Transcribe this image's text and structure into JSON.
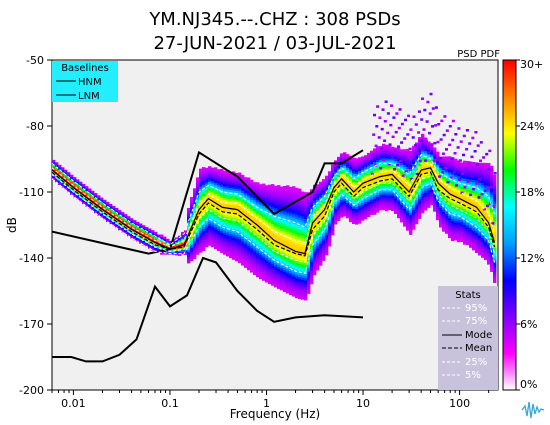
{
  "title_line1": "YM.NJ345.--.CHZ : 308 PSDs",
  "title_line2": "27-JUN-2021 / 03-JUL-2021",
  "pdf_label": "PSD PDF",
  "colors": {
    "plot_bg": "#f0f0f0",
    "hnm_lnm": "#000000",
    "baseline_box": "#22eeff",
    "stats_box": "#c9c2dc"
  },
  "logo": "wave-logo-icon",
  "chart_data": {
    "type": "heatmap",
    "title": "YM.NJ345.--.CHZ : 308 PSDs",
    "subtitle": "27-JUN-2021 / 03-JUL-2021",
    "xlabel": "Frequency (Hz)",
    "ylabel": "dB",
    "xscale": "log",
    "xlim": [
      0.006,
      250
    ],
    "ylim": [
      -200,
      -50
    ],
    "x_tick_values": [
      0.01,
      0.1,
      1,
      10,
      100
    ],
    "x_tick_labels": [
      "0.01",
      "0.1",
      "1",
      "10",
      "100"
    ],
    "y_tick_values": [
      -200,
      -170,
      -140,
      -110,
      -80,
      -50
    ],
    "y_tick_labels": [
      "-200",
      "-170",
      "-140",
      "-110",
      "-80",
      "-50"
    ],
    "colorbar": {
      "label": "PSD PDF",
      "tick_labels": [
        "0%",
        "6%",
        "12%",
        "18%",
        "24%",
        "30+"
      ],
      "tick_values": [
        0,
        6,
        12,
        18,
        24,
        30
      ],
      "colors": [
        "#ff00ff",
        "#8000ff",
        "#0000ff",
        "#00a0ff",
        "#00ffff",
        "#00ff00",
        "#ffff00",
        "#ff8000",
        "#ff0000"
      ]
    },
    "baselines_legend": {
      "title": "Baselines",
      "entries": [
        "HNM",
        "LNM"
      ],
      "placement": "top-left"
    },
    "stats_legend": {
      "title": "Stats",
      "entries": [
        "95%",
        "75%",
        "Mode",
        "Mean",
        "25%",
        "5%"
      ],
      "placement": "bottom-right"
    },
    "series": [
      {
        "name": "HNM",
        "x": [
          0.006,
          0.06,
          0.1,
          0.2,
          0.5,
          1.2,
          3,
          4,
          6,
          10
        ],
        "y": [
          -128,
          -138,
          -136,
          -92,
          -103,
          -120,
          -110,
          -97,
          -97,
          -91
        ]
      },
      {
        "name": "LNM",
        "x": [
          0.006,
          0.0095,
          0.0135,
          0.02,
          0.03,
          0.045,
          0.07,
          0.1,
          0.15,
          0.22,
          0.3,
          0.5,
          0.8,
          1.2,
          2,
          4,
          10
        ],
        "y": [
          -185,
          -185,
          -187,
          -187,
          -184,
          -177,
          -153,
          -162,
          -157,
          -140,
          -142,
          -155,
          -164,
          -169,
          -167,
          -166,
          -167
        ]
      },
      {
        "name": "Mode",
        "x": [
          0.006,
          0.01,
          0.02,
          0.04,
          0.07,
          0.1,
          0.14,
          0.2,
          0.25,
          0.35,
          0.5,
          0.8,
          1.2,
          2,
          2.5,
          3,
          4,
          5,
          6,
          8,
          10,
          15,
          20,
          30,
          40,
          50,
          60,
          80,
          100,
          150,
          200,
          230
        ],
        "y": [
          -100,
          -108,
          -118,
          -127,
          -133,
          -136,
          -134,
          -118,
          -113,
          -117,
          -118,
          -125,
          -132,
          -137,
          -138,
          -124,
          -118,
          -108,
          -104,
          -110,
          -106,
          -103,
          -102,
          -110,
          -100,
          -99,
          -106,
          -111,
          -113,
          -117,
          -124,
          -133
        ]
      },
      {
        "name": "Mean",
        "x": [
          0.006,
          0.01,
          0.02,
          0.04,
          0.07,
          0.1,
          0.14,
          0.2,
          0.25,
          0.35,
          0.5,
          0.8,
          1.2,
          2,
          2.5,
          3,
          4,
          5,
          6,
          8,
          10,
          15,
          20,
          30,
          40,
          50,
          60,
          80,
          100,
          150,
          200,
          230
        ],
        "y": [
          -101,
          -109,
          -119,
          -128,
          -134,
          -136,
          -135,
          -120,
          -115,
          -119,
          -120,
          -127,
          -134,
          -138,
          -139,
          -127,
          -121,
          -110,
          -106,
          -112,
          -108,
          -105,
          -104,
          -112,
          -102,
          -101,
          -109,
          -113,
          -115,
          -119,
          -126,
          -135
        ]
      },
      {
        "name": "95%",
        "x": [
          0.006,
          0.01,
          0.02,
          0.04,
          0.07,
          0.1,
          0.14,
          0.2,
          0.25,
          0.35,
          0.5,
          0.8,
          1.2,
          2,
          2.5,
          3,
          4,
          5,
          6,
          8,
          10,
          15,
          20,
          30,
          40,
          50,
          60,
          80,
          100,
          150,
          200,
          230
        ],
        "y": [
          -97,
          -105,
          -115,
          -124,
          -130,
          -134,
          -129,
          -110,
          -107,
          -110,
          -111,
          -117,
          -121,
          -124,
          -126,
          -117,
          -112,
          -103,
          -99,
          -104,
          -101,
          -97,
          -97,
          -102,
          -93,
          -95,
          -101,
          -104,
          -106,
          -108,
          -112,
          -120
        ]
      },
      {
        "name": "75%",
        "x": [
          0.006,
          0.01,
          0.02,
          0.04,
          0.07,
          0.1,
          0.14,
          0.2,
          0.25,
          0.35,
          0.5,
          0.8,
          1.2,
          2,
          2.5,
          3,
          4,
          5,
          6,
          8,
          10,
          15,
          20,
          30,
          40,
          50,
          60,
          80,
          100,
          150,
          200,
          230
        ],
        "y": [
          -99,
          -107,
          -117,
          -126,
          -132,
          -135,
          -132,
          -115,
          -111,
          -115,
          -115,
          -122,
          -128,
          -132,
          -133,
          -121,
          -116,
          -106,
          -102,
          -108,
          -104,
          -101,
          -100,
          -107,
          -97,
          -97,
          -104,
          -108,
          -110,
          -114,
          -120,
          -129
        ]
      },
      {
        "name": "25%",
        "x": [
          0.006,
          0.01,
          0.02,
          0.04,
          0.07,
          0.1,
          0.14,
          0.2,
          0.25,
          0.35,
          0.5,
          0.8,
          1.2,
          2,
          2.5,
          3,
          4,
          5,
          6,
          8,
          10,
          15,
          20,
          30,
          40,
          50,
          60,
          80,
          100,
          150,
          200,
          230
        ],
        "y": [
          -102,
          -110,
          -120,
          -129,
          -135,
          -137,
          -136,
          -122,
          -118,
          -122,
          -123,
          -130,
          -137,
          -141,
          -142,
          -130,
          -123,
          -112,
          -108,
          -113,
          -110,
          -106,
          -106,
          -114,
          -104,
          -103,
          -111,
          -116,
          -118,
          -122,
          -128,
          -138
        ]
      },
      {
        "name": "5%",
        "x": [
          0.006,
          0.01,
          0.02,
          0.04,
          0.07,
          0.1,
          0.14,
          0.2,
          0.25,
          0.35,
          0.5,
          0.8,
          1.2,
          2,
          2.5,
          3,
          4,
          5,
          6,
          8,
          10,
          15,
          20,
          30,
          40,
          50,
          60,
          80,
          100,
          150,
          200,
          230
        ],
        "y": [
          -104,
          -112,
          -122,
          -131,
          -137,
          -138,
          -138,
          -126,
          -122,
          -126,
          -128,
          -135,
          -141,
          -146,
          -147,
          -134,
          -127,
          -115,
          -111,
          -116,
          -113,
          -109,
          -109,
          -118,
          -108,
          -106,
          -114,
          -120,
          -121,
          -126,
          -132,
          -142
        ]
      }
    ]
  }
}
